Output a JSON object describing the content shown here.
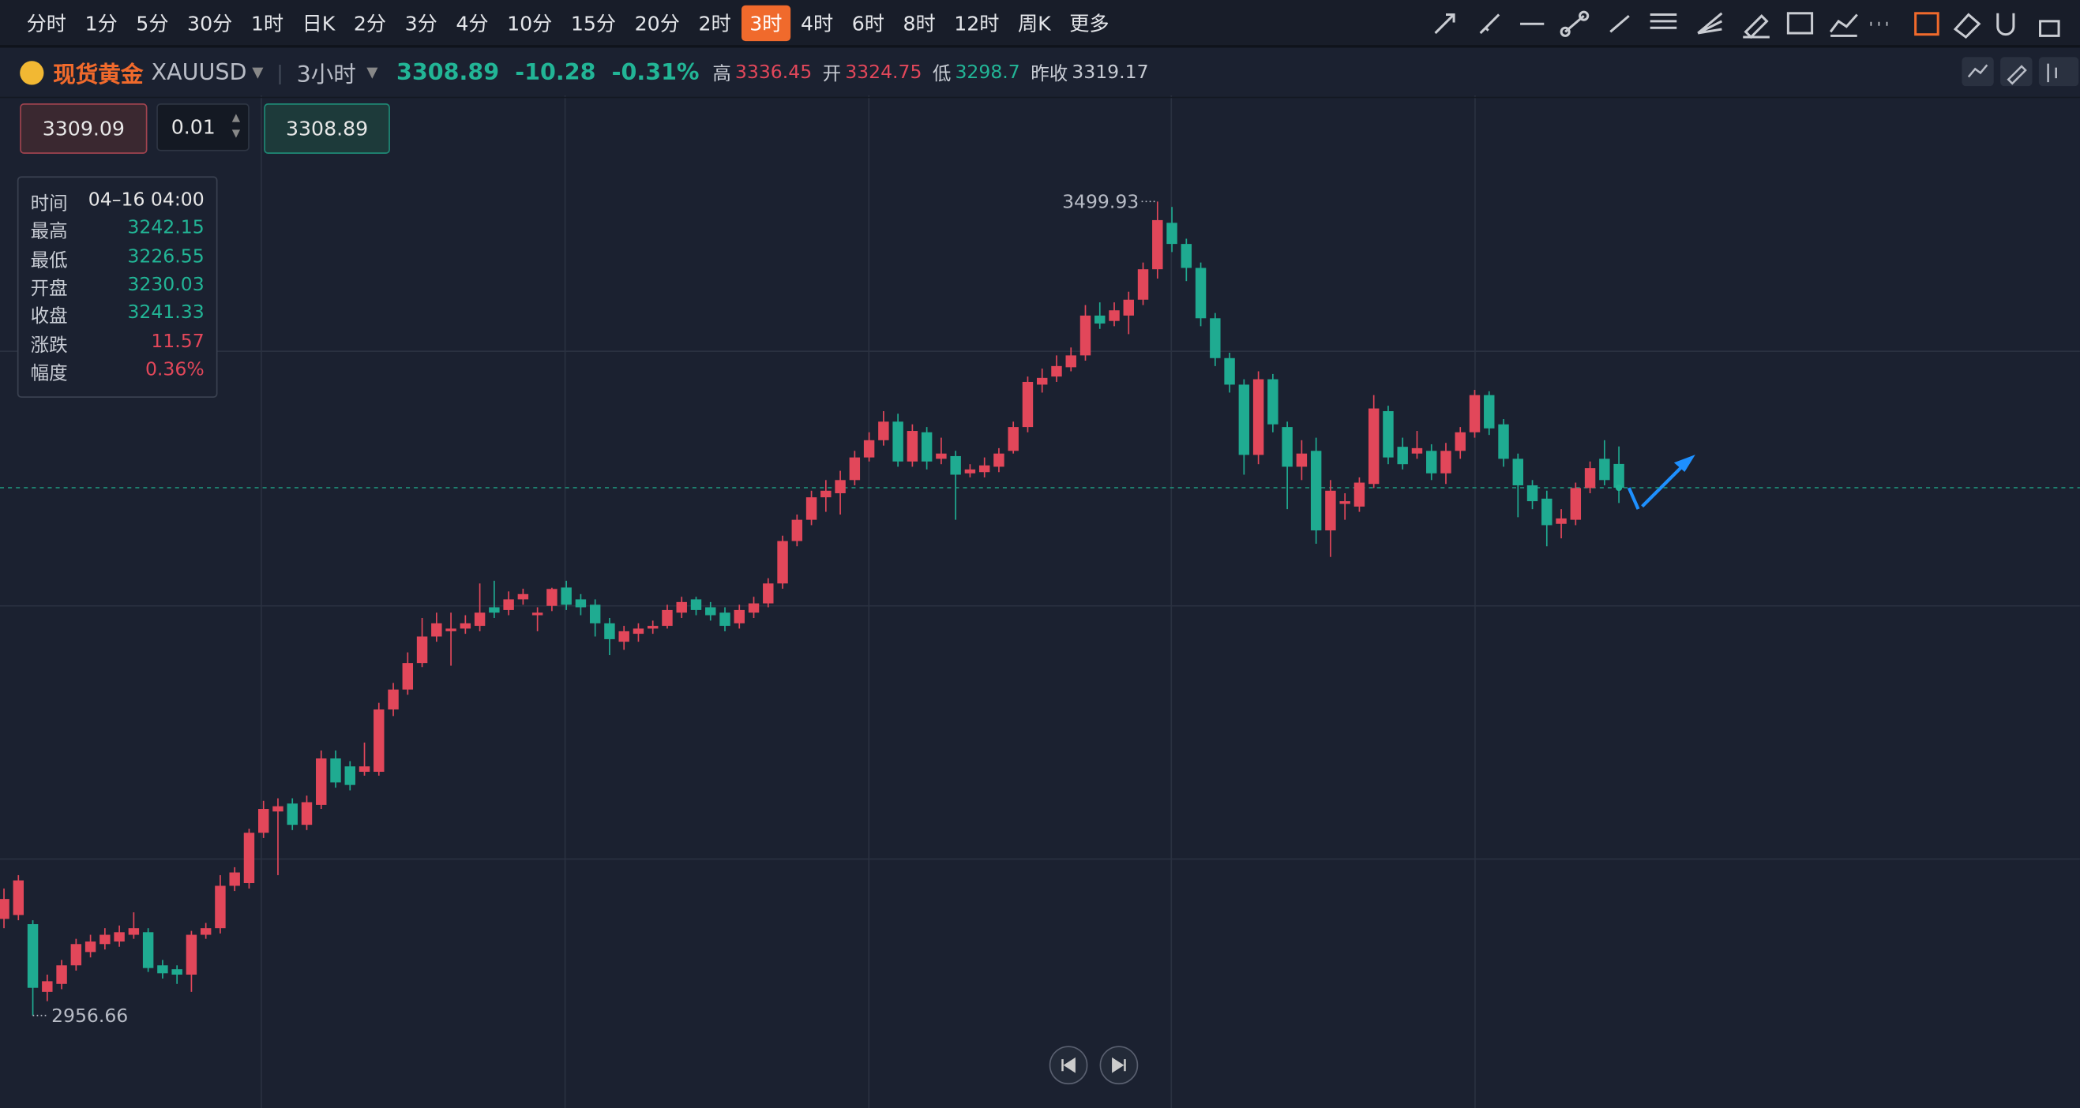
{
  "toolbar": {
    "intervals": [
      "分时",
      "1分",
      "5分",
      "30分",
      "1时",
      "日K",
      "2分",
      "3分",
      "4分",
      "10分",
      "15分",
      "20分",
      "2时",
      "3时",
      "4时",
      "6时",
      "8时",
      "12时",
      "周K",
      "更多"
    ],
    "active": 13
  },
  "header": {
    "name": "现货黄金",
    "symbol": "XAUUSD",
    "interval": "3小时",
    "change": "-10.28",
    "change_pct": "-0.31%",
    "high_label": "高",
    "open_label": "开",
    "low_label": "低",
    "prev_close_label": "昨收",
    "prev_close": "3319.17"
  },
  "order": {
    "sell": "3309.09",
    "qty": "0.01"
  },
  "tooltip": {
    "labels": [
      "时间",
      "最高",
      "最低",
      "开盘",
      "收盘",
      "涨跌",
      "幅度"
    ],
    "time": "04–16 04:00",
    "change": "11.57",
    "amplitude": "0.36%"
  },
  "chart_data": {
    "type": "candlestick",
    "up_color": "#e2475a",
    "down_color": "#1fab91",
    "open": [
      3021.1,
      3023.7,
      3017.6,
      2972.4,
      2977.7,
      2990.1,
      2999.0,
      3004.3,
      3006.0,
      3010.5,
      3012.2,
      2990.1,
      2987.5,
      2983.9,
      3010.5,
      3014.9,
      3043.2,
      3045.0,
      3078.6,
      3092.8,
      3098.1,
      3083.9,
      3097.2,
      3128.2,
      3122.9,
      3119.3,
      3119.3,
      3160.9,
      3174.2,
      3191.9,
      3209.6,
      3213.1,
      3214.9,
      3216.7,
      3229.1,
      3227.3,
      3234.4,
      3223.8,
      3230.03,
      3242.3,
      3234.4,
      3230.8,
      3218.4,
      3206.1,
      3211.4,
      3214.9,
      3216.7,
      3225.5,
      3234.4,
      3229.1,
      3225.5,
      3218.4,
      3225.5,
      3231.7,
      3245.0,
      3273.3,
      3287.5,
      3302.5,
      3305.2,
      3314.0,
      3329.1,
      3340.6,
      3353.0,
      3326.4,
      3345.9,
      3328.2,
      3330.0,
      3318.5,
      3319.3,
      3322.9,
      3333.5,
      3349.4,
      3377.7,
      3383.1,
      3389.3,
      3397.2,
      3423.8,
      3420.2,
      3423.8,
      3434.4,
      3454.7,
      3485.7,
      3471.6,
      3455.6,
      3422.0,
      3395.4,
      3377.7,
      3330.8,
      3381.3,
      3349.4,
      3322.9,
      3333.5,
      3280.4,
      3298.1,
      3296.3,
      3311.4,
      3360.0,
      3336.2,
      3331.7,
      3333.5,
      3318.5,
      3333.5,
      3345.9,
      3370.7,
      3351.2,
      3328.2,
      3310.5,
      3301.6,
      3284.8,
      3287.5,
      3308.7,
      3328.2,
      3324.75
    ],
    "high": [
      3041.4,
      3050.3,
      3020.2,
      2983.9,
      2993.7,
      3007.8,
      3010.5,
      3014.9,
      3016.7,
      3025.5,
      3014.9,
      2993.7,
      2990.1,
      3013.1,
      3018.4,
      3050.3,
      3055.6,
      3081.3,
      3099.9,
      3101.6,
      3101.6,
      3103.4,
      3133.5,
      3133.5,
      3126.4,
      3138.8,
      3165.3,
      3178.6,
      3199.0,
      3222.0,
      3225.5,
      3225.5,
      3223.8,
      3245.0,
      3246.8,
      3239.7,
      3241.5,
      3229.1,
      3242.15,
      3246.8,
      3237.9,
      3234.4,
      3222.0,
      3216.7,
      3218.4,
      3220.2,
      3230.8,
      3236.1,
      3236.1,
      3232.6,
      3229.1,
      3230.8,
      3236.1,
      3248.5,
      3276.9,
      3291.0,
      3306.9,
      3314.0,
      3320.2,
      3333.5,
      3345.9,
      3360.0,
      3358.3,
      3351.2,
      3349.4,
      3342.3,
      3333.5,
      3324.6,
      3329.1,
      3335.3,
      3353.0,
      3383.1,
      3388.4,
      3397.2,
      3402.5,
      3430.8,
      3432.6,
      3432.6,
      3439.7,
      3459.2,
      3499.93,
      3496.3,
      3475.1,
      3459.2,
      3425.5,
      3399.0,
      3381.3,
      3386.6,
      3384.8,
      3353.0,
      3340.6,
      3342.3,
      3314.0,
      3305.2,
      3315.8,
      3370.7,
      3363.6,
      3342.3,
      3346.8,
      3337.9,
      3338.8,
      3349.4,
      3374.2,
      3373.3,
      3354.7,
      3331.7,
      3314.0,
      3306.9,
      3294.6,
      3312.3,
      3326.4,
      3340.6,
      3336.45
    ],
    "low": [
      3014.9,
      3020.2,
      2956.66,
      2966.2,
      2974.2,
      2986.6,
      2995.4,
      3000.7,
      3002.5,
      3007.8,
      2985.7,
      2981.3,
      2977.7,
      2972.4,
      3007.8,
      3011.4,
      3039.7,
      3041.4,
      3075.1,
      3050.3,
      3080.4,
      3080.4,
      3094.5,
      3108.7,
      3106.9,
      3116.7,
      3116.7,
      3156.5,
      3170.7,
      3189.2,
      3206.1,
      3190.1,
      3211.4,
      3213.1,
      3222.0,
      3223.8,
      3230.8,
      3213.1,
      3226.55,
      3227.3,
      3223.8,
      3209.6,
      3197.2,
      3200.7,
      3206.1,
      3211.4,
      3214.9,
      3222.0,
      3223.8,
      3220.2,
      3213.1,
      3214.9,
      3222.0,
      3229.1,
      3241.5,
      3269.8,
      3283.9,
      3292.8,
      3291.0,
      3310.5,
      3326.4,
      3337.0,
      3322.9,
      3322.9,
      3321.1,
      3324.6,
      3287.5,
      3315.8,
      3315.8,
      3319.3,
      3331.7,
      3345.9,
      3372.4,
      3379.5,
      3386.6,
      3393.7,
      3414.9,
      3416.7,
      3411.4,
      3430.8,
      3448.5,
      3466.2,
      3446.8,
      3416.7,
      3390.1,
      3372.4,
      3317.6,
      3324.6,
      3345.9,
      3294.6,
      3314.0,
      3271.5,
      3262.7,
      3287.5,
      3292.8,
      3308.7,
      3324.6,
      3321.1,
      3328.2,
      3314.0,
      3311.4,
      3328.2,
      3342.3,
      3344.1,
      3322.9,
      3289.2,
      3294.6,
      3269.8,
      3275.1,
      3283.9,
      3305.2,
      3310.5,
      3298.7
    ],
    "close": [
      3034.4,
      3046.8,
      2975.1,
      2979.5,
      2990.1,
      3004.3,
      3006.0,
      3010.5,
      3012.2,
      3014.9,
      2988.3,
      2984.8,
      2983.9,
      3010.5,
      3014.9,
      3043.2,
      3052.1,
      3078.6,
      3094.5,
      3096.3,
      3083.9,
      3099.0,
      3128.2,
      3112.2,
      3110.5,
      3122.9,
      3160.9,
      3174.2,
      3191.9,
      3209.6,
      3218.4,
      3214.9,
      3218.4,
      3225.5,
      3225.5,
      3234.4,
      3237.9,
      3225.5,
      3241.33,
      3230.8,
      3229.1,
      3218.4,
      3207.8,
      3213.1,
      3214.9,
      3216.7,
      3227.3,
      3232.6,
      3227.3,
      3223.8,
      3216.7,
      3227.3,
      3231.7,
      3245.0,
      3273.3,
      3287.5,
      3302.5,
      3306.9,
      3314.0,
      3329.1,
      3340.6,
      3353.0,
      3326.4,
      3346.8,
      3326.4,
      3331.7,
      3317.6,
      3321.1,
      3323.8,
      3331.7,
      3349.4,
      3379.5,
      3382.2,
      3390.1,
      3397.2,
      3423.8,
      3418.5,
      3427.3,
      3434.4,
      3454.7,
      3487.5,
      3471.6,
      3455.6,
      3422.0,
      3395.4,
      3377.7,
      3330.8,
      3381.3,
      3351.2,
      3322.9,
      3331.7,
      3280.4,
      3306.9,
      3299.9,
      3312.3,
      3361.8,
      3329.1,
      3324.6,
      3335.3,
      3318.5,
      3333.5,
      3345.9,
      3370.7,
      3348.5,
      3328.2,
      3310.5,
      3299.9,
      3283.9,
      3288.4,
      3308.7,
      3322.0,
      3314.0,
      3308.89
    ]
  }
}
